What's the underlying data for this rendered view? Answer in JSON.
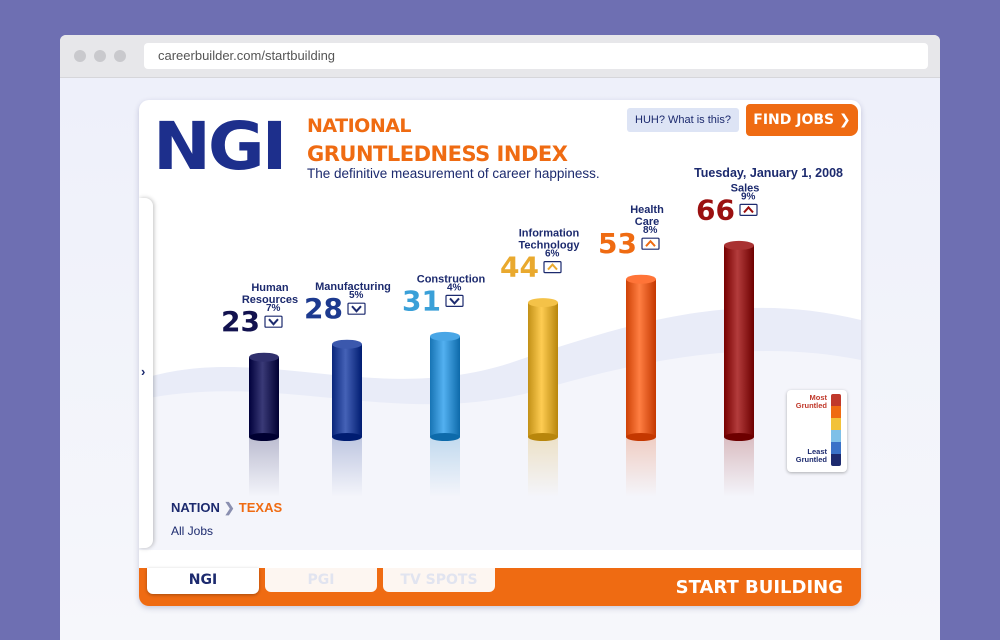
{
  "browser": {
    "url": "careerbuilder.com/startbuilding"
  },
  "header": {
    "logo": "NGI",
    "title_line1": "NATIONAL",
    "title_line2": "GRUNTLEDNESS INDEX",
    "tagline": "The definitive measurement of career happiness.",
    "help_label": "HUH? What is this?",
    "find_jobs_label": "FIND JOBS ❯",
    "date": "Tuesday, January 1, 2008"
  },
  "legend": {
    "top_label": "Most Gruntled",
    "bottom_label": "Least Gruntled"
  },
  "breadcrumb": {
    "nation": "NATION",
    "separator": "❯",
    "state": "TEXAS",
    "filter": "All Jobs"
  },
  "side_tab": {
    "arrow": "›"
  },
  "tabs": [
    {
      "label": "NGI",
      "active": true
    },
    {
      "label": "PGI",
      "active": false
    },
    {
      "label": "TV SPOTS",
      "active": false
    }
  ],
  "footer_brand": "START BUILDING",
  "chart_data": {
    "type": "bar",
    "categories": [
      "Human Resources",
      "Manufacturing",
      "Construction",
      "Information Technology",
      "Health Care",
      "Sales"
    ],
    "values": [
      23,
      28,
      31,
      44,
      53,
      66
    ],
    "changes": [
      "7%",
      "5%",
      "4%",
      "6%",
      "8%",
      "9%"
    ],
    "trend": [
      "down",
      "down",
      "down",
      "up",
      "up",
      "up"
    ],
    "colors": [
      "#12124f",
      "#1d3a8f",
      "#2b88c8",
      "#d6a42a",
      "#e2561a",
      "#8b1414"
    ],
    "score_colors": [
      "#12124f",
      "#1d3a8f",
      "#3aa0d8",
      "#e9a92e",
      "#ef6b12",
      "#9b1010"
    ]
  }
}
